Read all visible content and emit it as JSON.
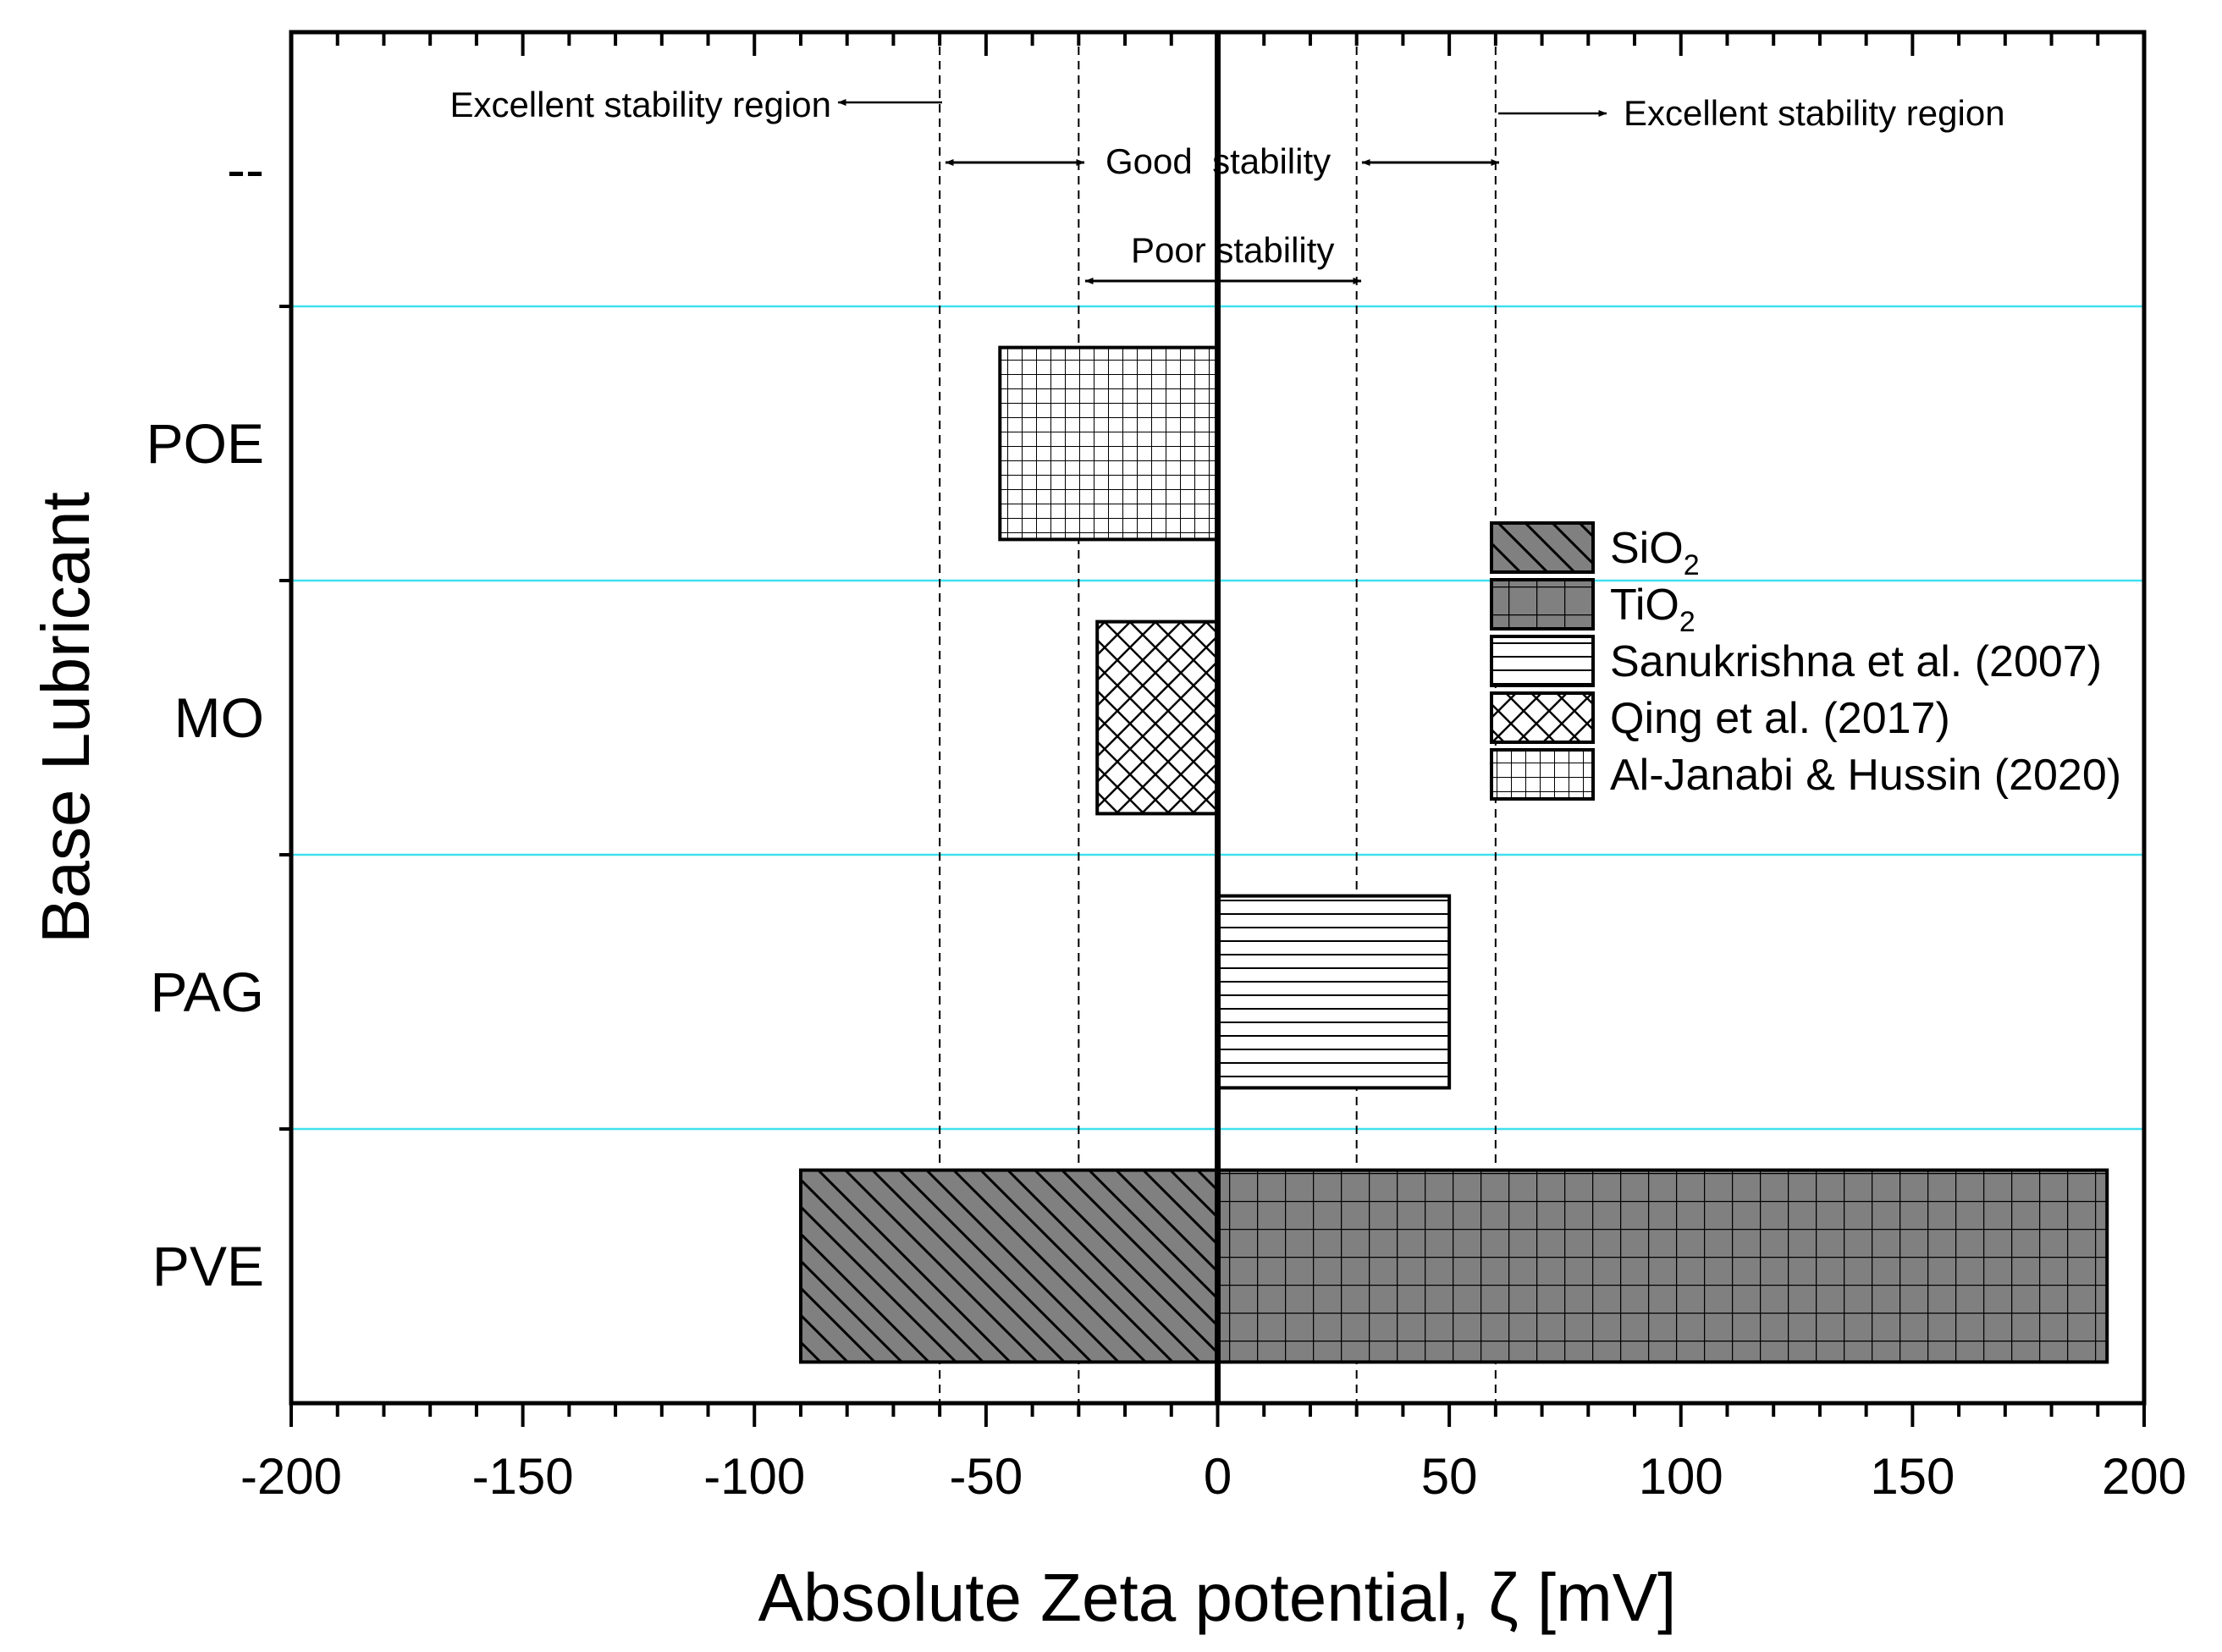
{
  "chart_data": {
    "type": "bar",
    "orientation": "horizontal",
    "xlabel": "Absolute Zeta potential, ζ [mV]",
    "ylabel": "Base Lubricant",
    "xlim": [
      -200,
      200
    ],
    "xticks": [
      -200,
      -150,
      -100,
      -50,
      0,
      50,
      100,
      150,
      200
    ],
    "categories": [
      "--",
      "POE",
      "MO",
      "PAG",
      "PVE"
    ],
    "series": [
      {
        "name": "SiO2",
        "label_main": "SiO",
        "label_sub": "2",
        "category": "PVE",
        "start": 0,
        "end": -90,
        "pattern": "diag",
        "fill": "#808080"
      },
      {
        "name": "TiO2",
        "label_main": "TiO",
        "label_sub": "2",
        "category": "PVE",
        "start": 0,
        "end": 192,
        "pattern": "grid",
        "fill": "#808080"
      },
      {
        "name": "Sanukrishna et al. (2007)",
        "label_main": "Sanukrishna et al. (2007)",
        "label_sub": "",
        "category": "PAG",
        "start": 0,
        "end": 50,
        "pattern": "hlines",
        "fill": "#ffffff"
      },
      {
        "name": "Qing et al. (2017)",
        "label_main": "Qing et al. (2017)",
        "label_sub": "",
        "category": "MO",
        "start": 0,
        "end": -26,
        "pattern": "cross",
        "fill": "#ffffff"
      },
      {
        "name": "Al-Janabi & Hussin (2020)",
        "label_main": "Al-Janabi & Hussin (2020)",
        "label_sub": "",
        "category": "POE",
        "start": 0,
        "end": -47,
        "pattern": "finegrid",
        "fill": "#ffffff"
      }
    ],
    "reference_lines": [
      -60,
      -30,
      30,
      60
    ],
    "annotations": {
      "excellent_left": "Excellent stability region",
      "excellent_right": "Excellent stability region",
      "good": "Good  stability",
      "poor": "Poor stability"
    },
    "legend_position": "right-center"
  }
}
